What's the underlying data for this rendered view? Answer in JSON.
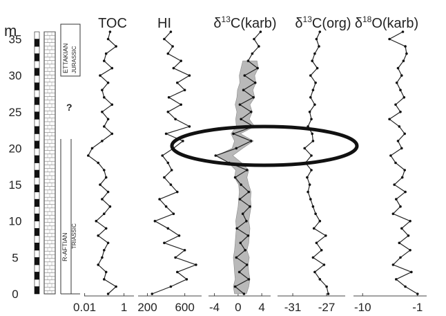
{
  "chart_data": {
    "type": "line",
    "depth_axis": {
      "unit_label": "m",
      "ticks": [
        "0",
        "5",
        "10",
        "15",
        "20",
        "25",
        "30",
        "35"
      ],
      "ylim": [
        0,
        36
      ]
    },
    "lithology": {
      "unit_upper": "ETTAKIAN",
      "unit_upper_sub": "JURASSIC",
      "unit_lower": "R-AFTIAN",
      "unit_lower_sub": "TRIASSIC",
      "unknown_mark": "?"
    },
    "panels": [
      {
        "name_main": "TOC",
        "name_sup": "",
        "name_tail": "",
        "xlim": [
          0,
          1.25
        ],
        "ticks": [
          "0.01",
          "1"
        ],
        "tick_values": [
          0.01,
          1
        ],
        "depth": [
          0,
          1,
          2,
          3,
          4,
          5,
          6,
          7,
          8,
          9,
          10,
          11,
          12,
          13,
          14,
          15,
          16,
          17,
          18,
          19,
          20,
          21,
          22,
          23,
          24,
          25,
          26,
          27,
          28,
          29,
          30,
          31,
          32,
          33,
          34,
          35,
          36
        ],
        "values": [
          0.6,
          0.8,
          0.5,
          0.55,
          0.35,
          0.45,
          0.5,
          0.6,
          0.35,
          0.55,
          0.3,
          0.5,
          0.65,
          0.45,
          0.6,
          0.4,
          0.55,
          0.5,
          0.35,
          0.1,
          0.2,
          0.45,
          0.7,
          0.5,
          0.6,
          0.45,
          0.7,
          0.5,
          0.45,
          0.6,
          0.4,
          0.7,
          0.5,
          0.55,
          0.8,
          0.6,
          0.65
        ]
      },
      {
        "name_main": "HI",
        "name_sup": "",
        "name_tail": "",
        "xlim": [
          100,
          780
        ],
        "ticks": [
          "200",
          "600"
        ],
        "tick_values": [
          200,
          600
        ],
        "depth": [
          0,
          1,
          2,
          3,
          4,
          5,
          6,
          7,
          8,
          9,
          10,
          11,
          12,
          13,
          14,
          15,
          16,
          17,
          18,
          19,
          20,
          21,
          22,
          23,
          24,
          25,
          26,
          27,
          28,
          29,
          30,
          31,
          32,
          33,
          34,
          35,
          36
        ],
        "values": [
          250,
          450,
          620,
          520,
          720,
          500,
          600,
          380,
          540,
          420,
          280,
          480,
          400,
          330,
          520,
          450,
          380,
          460,
          420,
          360,
          480,
          580,
          400,
          650,
          500,
          420,
          560,
          430,
          600,
          520,
          650,
          480,
          560,
          420,
          470,
          380,
          450
        ]
      },
      {
        "name_main": "δ",
        "name_sup": "13",
        "name_tail": "C(karb)",
        "xlim": [
          -5,
          5.5
        ],
        "ticks": [
          "-4",
          "0",
          "4"
        ],
        "tick_values": [
          -4,
          0,
          4
        ],
        "depth": [
          0,
          1,
          2,
          3,
          4,
          5,
          6,
          7,
          8,
          9,
          10,
          11,
          12,
          13,
          14,
          15,
          16,
          17,
          18,
          19,
          20,
          21,
          22,
          23,
          24,
          25,
          26,
          27,
          28,
          29,
          30,
          31,
          32,
          33,
          34,
          35,
          36
        ],
        "values": [
          1.0,
          -0.5,
          1.8,
          0.2,
          1.5,
          -0.3,
          1.2,
          0.4,
          1.7,
          -0.2,
          1.4,
          0.8,
          2.0,
          0.3,
          1.8,
          0.5,
          -0.5,
          1.5,
          -1.5,
          -3.8,
          -0.3,
          2.2,
          -0.8,
          2.6,
          0.5,
          2.2,
          0.3,
          2.6,
          0.9,
          2.9,
          1.1,
          3.3,
          1.7,
          2.4,
          3.5,
          2.7,
          3.8
        ],
        "band_low": [
          -0.6,
          -0.8,
          -0.5,
          -0.6,
          -0.7,
          -0.8,
          -0.6,
          -0.5,
          -0.4,
          -0.3,
          -0.4,
          -0.2,
          0.0,
          0.1,
          0.2,
          0.1,
          -0.6,
          -0.4,
          -1.6,
          -3.6,
          -1.0,
          -0.6,
          -1.2,
          -0.3,
          -0.4,
          -0.2,
          -0.5,
          -0.2,
          -0.1,
          0.3,
          0.2,
          0.5,
          0.8,
          null,
          null,
          null,
          null
        ],
        "band_high": [
          1.4,
          1.8,
          2.0,
          1.8,
          1.7,
          1.9,
          1.5,
          1.8,
          1.9,
          2.0,
          1.8,
          2.0,
          2.2,
          2.1,
          2.2,
          1.8,
          1.5,
          1.8,
          0.6,
          -0.9,
          0.8,
          2.6,
          0.4,
          2.8,
          1.9,
          2.4,
          2.0,
          2.8,
          2.5,
          3.0,
          2.8,
          3.4,
          3.2,
          null,
          null,
          null,
          null
        ]
      },
      {
        "name_main": "δ",
        "name_sup": "13",
        "name_tail": "C(org)",
        "xlim": [
          -32.8,
          -24.8
        ],
        "ticks": [
          "-31",
          "-27"
        ],
        "tick_values": [
          -31,
          -27
        ],
        "depth": [
          0,
          1,
          2,
          3,
          4,
          5,
          6,
          7,
          8,
          9,
          10,
          11,
          12,
          13,
          14,
          15,
          16,
          17,
          18,
          19,
          20,
          21,
          22,
          23,
          24,
          25,
          26,
          27,
          28,
          29,
          30,
          31,
          32,
          33,
          34,
          35,
          36
        ],
        "values": [
          -26.8,
          -27.0,
          -27.8,
          -28.4,
          -27.3,
          -28.6,
          -27.6,
          -28.2,
          -27.1,
          -28.5,
          -27.8,
          -28.3,
          -28.6,
          -28.9,
          -29.2,
          -29.0,
          -29.3,
          -28.8,
          -29.5,
          -28.8,
          -29.6,
          -28.6,
          -28.7,
          -29.2,
          -28.8,
          -29.0,
          -28.4,
          -28.9,
          -28.6,
          -28.3,
          -28.9,
          -28.1,
          -28.7,
          -28.4,
          -27.9,
          -28.2,
          -27.8
        ]
      },
      {
        "name_main": "δ",
        "name_sup": "18",
        "name_tail": "O(karb)",
        "xlim": [
          -11.5,
          0.5
        ],
        "ticks": [
          "-10",
          "-1"
        ],
        "tick_values": [
          -10,
          -1
        ],
        "depth": [
          0,
          1,
          2,
          3,
          4,
          5,
          6,
          7,
          8,
          9,
          10,
          11,
          12,
          13,
          14,
          15,
          16,
          17,
          18,
          19,
          20,
          21,
          22,
          23,
          24,
          25,
          26,
          27,
          28,
          29,
          30,
          31,
          32,
          33,
          34,
          35,
          36
        ],
        "values": [
          -1.0,
          -3.0,
          -4.5,
          -2.0,
          -5.0,
          -3.8,
          -2.2,
          -4.0,
          -2.5,
          -3.6,
          -2.2,
          -5.0,
          -3.8,
          -4.5,
          -3.0,
          -4.8,
          -3.5,
          -3.1,
          -4.6,
          -5.4,
          -3.6,
          -4.2,
          -3.1,
          -4.0,
          -5.6,
          -3.8,
          -4.6,
          -3.2,
          -3.8,
          -4.4,
          -3.6,
          -4.2,
          -3.3,
          -2.8,
          -3.0,
          -5.6,
          -3.4
        ]
      }
    ],
    "legend_position": "none",
    "grid": false
  }
}
